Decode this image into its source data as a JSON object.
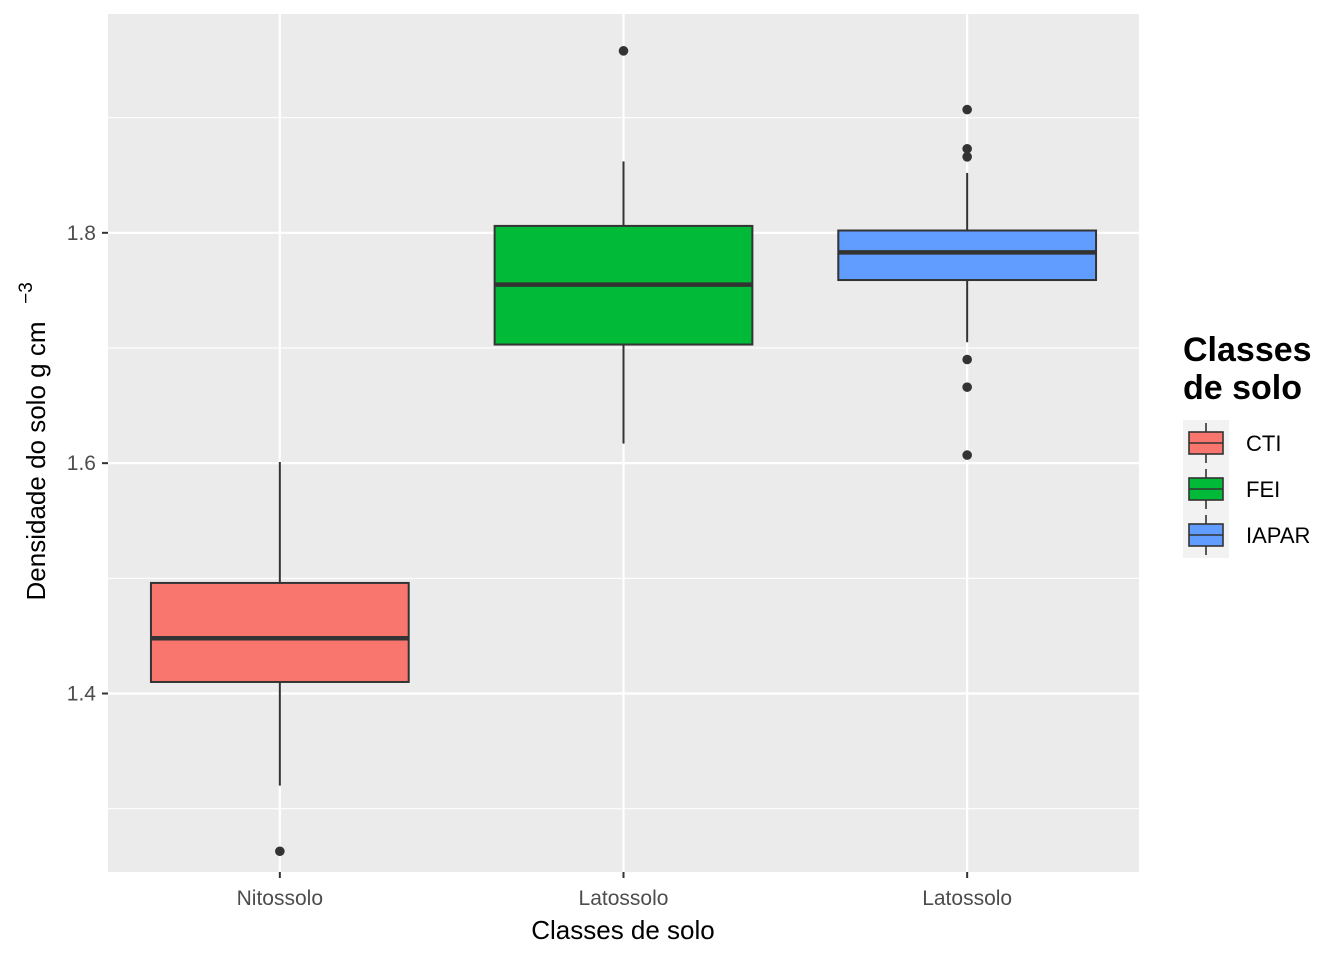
{
  "chart_data": {
    "type": "boxplot",
    "title": "",
    "xlabel": "Classes de solo",
    "ylabel": "Densidade do solo g cm",
    "ylabel_superscript": "−3",
    "ylim": [
      1.245,
      1.99
    ],
    "yticks": [
      1.4,
      1.6,
      1.8
    ],
    "ytick_labels": [
      "1.4",
      "1.6",
      "1.8"
    ],
    "grid": true,
    "legend": {
      "title_line1": "Classes",
      "title_line2": "de solo",
      "placement": "right",
      "entries": [
        {
          "label": "CTI",
          "color": "#F8766D"
        },
        {
          "label": "FEI",
          "color": "#00BA38"
        },
        {
          "label": "IAPAR",
          "color": "#619CFF"
        }
      ]
    },
    "categories": [
      "Nitossolo",
      "Latossolo",
      "Latossolo"
    ],
    "series": [
      {
        "name": "CTI",
        "category": "Nitossolo",
        "color": "#F8766D",
        "whisker_low": 1.32,
        "q1": 1.41,
        "median": 1.448,
        "q3": 1.496,
        "whisker_high": 1.601,
        "outliers": [
          1.263
        ]
      },
      {
        "name": "FEI",
        "category": "Latossolo",
        "color": "#00BA38",
        "whisker_low": 1.617,
        "q1": 1.703,
        "median": 1.755,
        "q3": 1.806,
        "whisker_high": 1.862,
        "outliers": [
          1.958
        ]
      },
      {
        "name": "IAPAR",
        "category": "Latossolo",
        "color": "#619CFF",
        "whisker_low": 1.705,
        "q1": 1.759,
        "median": 1.783,
        "q3": 1.802,
        "whisker_high": 1.852,
        "outliers": [
          1.907,
          1.873,
          1.866,
          1.69,
          1.666,
          1.607
        ]
      }
    ]
  },
  "colors": {
    "panel_background": "#EBEBEB",
    "grid": "#FFFFFF",
    "box_outline": "#333333"
  }
}
